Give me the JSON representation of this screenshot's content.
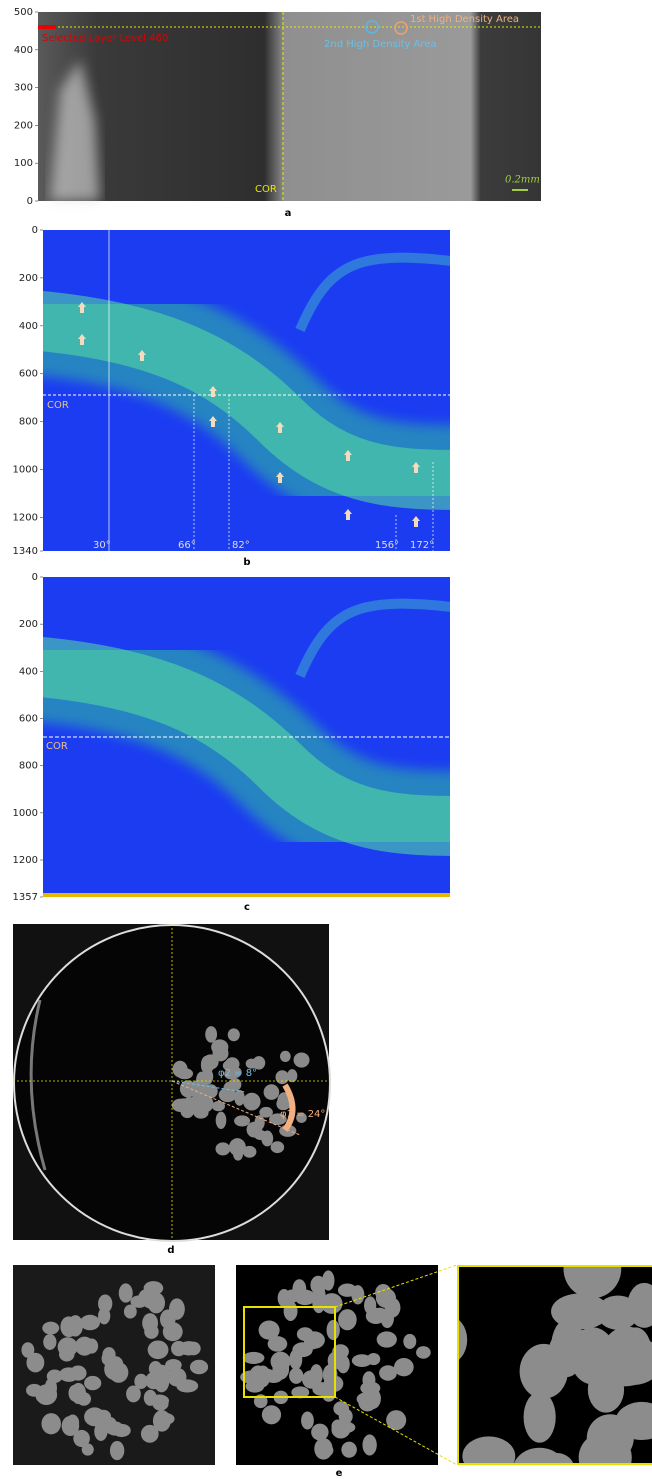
{
  "panel_a": {
    "label": "a",
    "yticks": [
      0,
      100,
      200,
      300,
      400,
      500
    ],
    "selected_layer": "Selected Layer Level 460",
    "high_density_1": "1st High Density Area",
    "high_density_2": "2nd High Density Area",
    "cor": "COR",
    "scale_bar": "0.2mm"
  },
  "panel_b": {
    "label": "b",
    "yticks": [
      0,
      200,
      400,
      600,
      800,
      1000,
      1200,
      1340
    ],
    "cor": "COR",
    "angles": [
      "30°",
      "66°",
      "82°",
      "156°",
      "172°"
    ]
  },
  "panel_c": {
    "label": "c",
    "yticks": [
      0,
      200,
      400,
      600,
      800,
      1000,
      1200,
      1357
    ],
    "cor": "COR"
  },
  "panel_d": {
    "label": "d",
    "phi2": "φ2 = 8°",
    "phi1": "φ1 = 24°"
  },
  "panel_e": {
    "label": "e"
  }
}
